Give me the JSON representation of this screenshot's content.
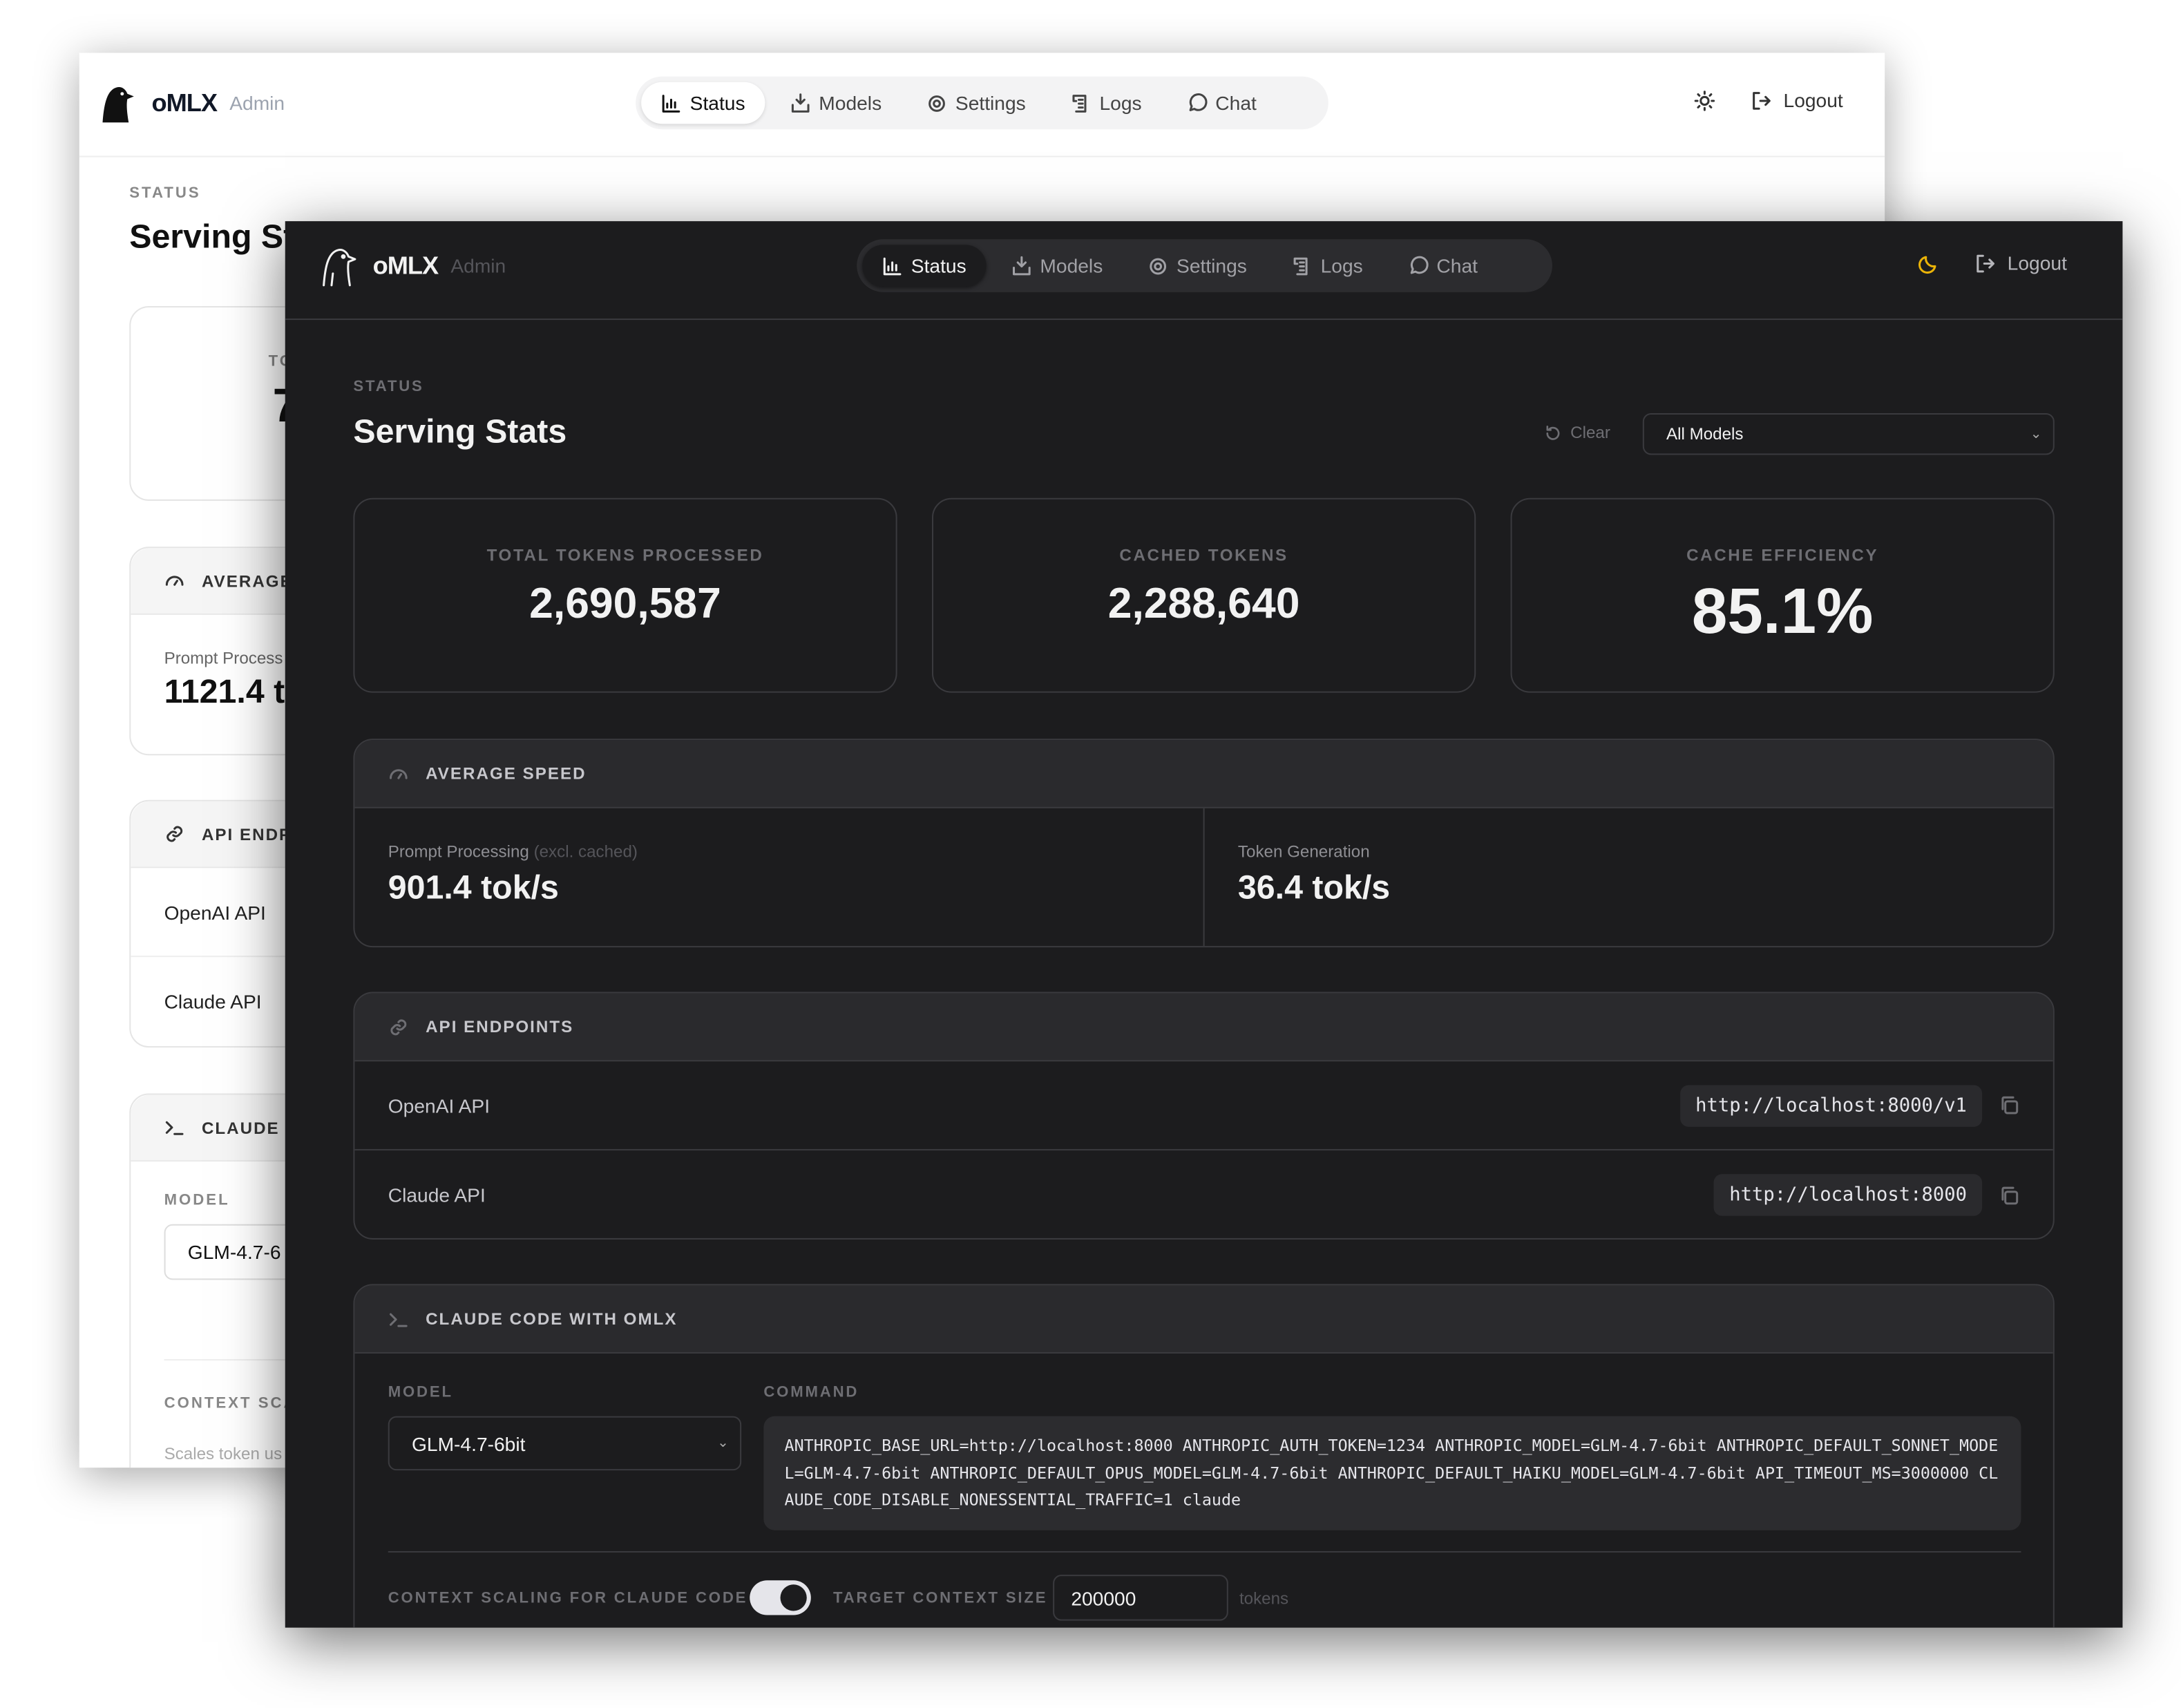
{
  "back_window": {
    "brand": "oMLX",
    "brand_sub": "Admin",
    "nav": [
      "Status",
      "Models",
      "Settings",
      "Logs",
      "Chat"
    ],
    "logout": "Logout",
    "theme_icon": "sun-icon",
    "section_label": "STATUS",
    "title": "Serving St",
    "card_label": "TO",
    "card_value": "7",
    "speed_header": "AVERAGE",
    "speed_label": "Prompt Process",
    "speed_value": "1121.4 t",
    "api_header": "API ENDP",
    "api_rows": [
      "OpenAI API",
      "Claude API"
    ],
    "claude_header": "CLAUDE C",
    "model_label": "MODEL",
    "model_value": "GLM-4.7-6",
    "context_label": "CONTEXT SCA",
    "context_desc": "Scales token us"
  },
  "front_window": {
    "brand": "oMLX",
    "brand_sub": "Admin",
    "nav": [
      "Status",
      "Models",
      "Settings",
      "Logs",
      "Chat"
    ],
    "active_nav": "Status",
    "logout": "Logout",
    "theme_icon": "moon-icon",
    "theme_icon_color": "#eab308",
    "section_label": "STATUS",
    "title": "Serving Stats",
    "clear": "Clear",
    "model_filter": "All Models",
    "cards": [
      {
        "label": "TOTAL TOKENS PROCESSED",
        "value": "2,690,587"
      },
      {
        "label": "CACHED TOKENS",
        "value": "2,288,640"
      },
      {
        "label": "CACHE EFFICIENCY",
        "value": "85.1%"
      }
    ],
    "speed": {
      "header": "AVERAGE SPEED",
      "prompt_label": "Prompt Processing",
      "prompt_note": "(excl. cached)",
      "prompt_value": "901.4 tok/s",
      "gen_label": "Token Generation",
      "gen_value": "36.4 tok/s"
    },
    "api": {
      "header": "API ENDPOINTS",
      "rows": [
        {
          "name": "OpenAI API",
          "url": "http://localhost:8000/v1"
        },
        {
          "name": "Claude API",
          "url": "http://localhost:8000"
        }
      ]
    },
    "claude": {
      "header": "CLAUDE CODE WITH OMLX",
      "model_label": "MODEL",
      "model_value": "GLM-4.7-6bit",
      "command_label": "COMMAND",
      "command": "ANTHROPIC_BASE_URL=http://localhost:8000 ANTHROPIC_AUTH_TOKEN=1234 ANTHROPIC_MODEL=GLM-4.7-6bit ANTHROPIC_DEFAULT_SONNET_MODEL=GLM-4.7-6bit ANTHROPIC_DEFAULT_OPUS_MODEL=GLM-4.7-6bit ANTHROPIC_DEFAULT_HAIKU_MODEL=GLM-4.7-6bit API_TIMEOUT_MS=3000000 CLAUDE_CODE_DISABLE_NONESSENTIAL_TRAFFIC=1 claude",
      "context_label": "CONTEXT SCALING FOR CLAUDE CODE",
      "context_enabled": true,
      "target_label": "TARGET CONTEXT SIZE",
      "target_value": "200000",
      "target_unit": "tokens"
    }
  }
}
